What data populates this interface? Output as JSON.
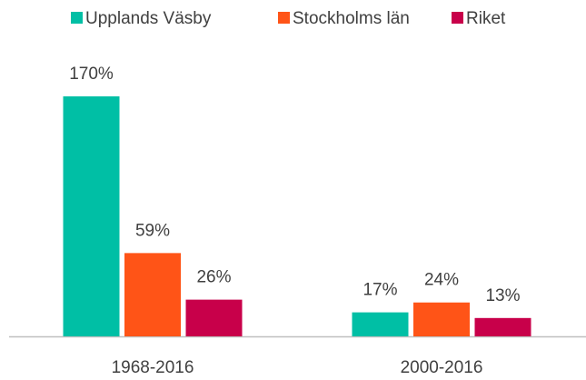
{
  "chart_data": {
    "type": "bar",
    "categories": [
      "1968-2016",
      "2000-2016"
    ],
    "series": [
      {
        "name": "Upplands Väsby",
        "color": "#00bfa5",
        "values": [
          170,
          17
        ],
        "value_labels": [
          "170%",
          "17%"
        ]
      },
      {
        "name": "Stockholms län",
        "color": "#ff5417",
        "values": [
          59,
          24
        ],
        "value_labels": [
          "59%",
          "24%"
        ]
      },
      {
        "name": "Riket",
        "color": "#c8004a",
        "values": [
          26,
          13
        ],
        "value_labels": [
          "26%",
          "13%"
        ]
      }
    ],
    "legend": "top"
  }
}
